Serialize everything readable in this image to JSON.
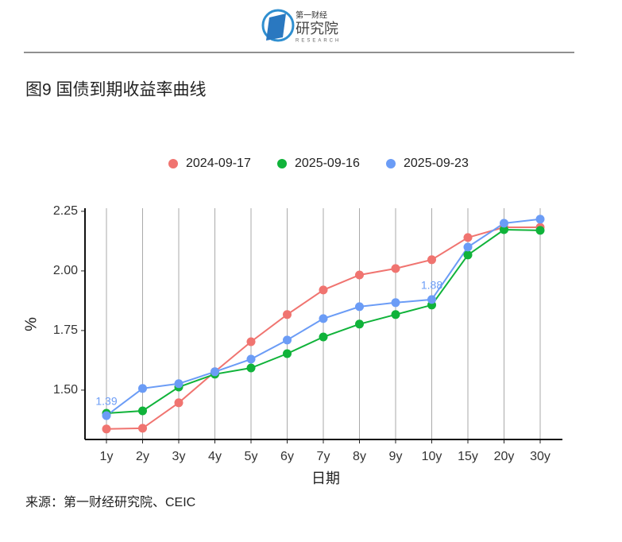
{
  "header": {
    "brand_top": "第一财经",
    "brand_main": "研究院",
    "brand_sub": "RESEARCH"
  },
  "chart_data": {
    "type": "line",
    "title": "图9 国债到期收益率曲线",
    "source": "来源：第一财经研究院、CEIC",
    "x_label": "日期",
    "y_label": "%",
    "categories": [
      "1y",
      "2y",
      "3y",
      "4y",
      "5y",
      "6y",
      "7y",
      "8y",
      "9y",
      "10y",
      "15y",
      "20y",
      "30y"
    ],
    "series": [
      {
        "name": "2024-09-17",
        "color": "#f07470",
        "values": [
          1.337,
          1.34,
          1.447,
          1.577,
          1.703,
          1.817,
          1.92,
          1.983,
          2.01,
          2.047,
          2.14,
          2.183,
          2.183
        ]
      },
      {
        "name": "2025-09-16",
        "color": "#10b33a",
        "values": [
          1.403,
          1.413,
          1.513,
          1.567,
          1.593,
          1.653,
          1.723,
          1.777,
          1.817,
          1.857,
          2.067,
          2.173,
          2.17
        ]
      },
      {
        "name": "2025-09-23",
        "color": "#6b9cf6",
        "values": [
          1.393,
          1.507,
          1.527,
          1.577,
          1.63,
          1.71,
          1.8,
          1.85,
          1.867,
          1.88,
          2.1,
          2.2,
          2.217
        ],
        "value_labels": [
          "1.39",
          null,
          null,
          null,
          null,
          null,
          null,
          null,
          null,
          "1.88",
          null,
          null,
          null
        ]
      }
    ],
    "ylim": [
      1.293,
      2.263
    ],
    "yticks": [
      {
        "value": 1.5,
        "label": "1.50"
      },
      {
        "value": 1.75,
        "label": "1.75"
      },
      {
        "value": 2.0,
        "label": "2.00"
      },
      {
        "value": 2.25,
        "label": "2.25"
      }
    ],
    "grid": true,
    "legend": "top"
  }
}
